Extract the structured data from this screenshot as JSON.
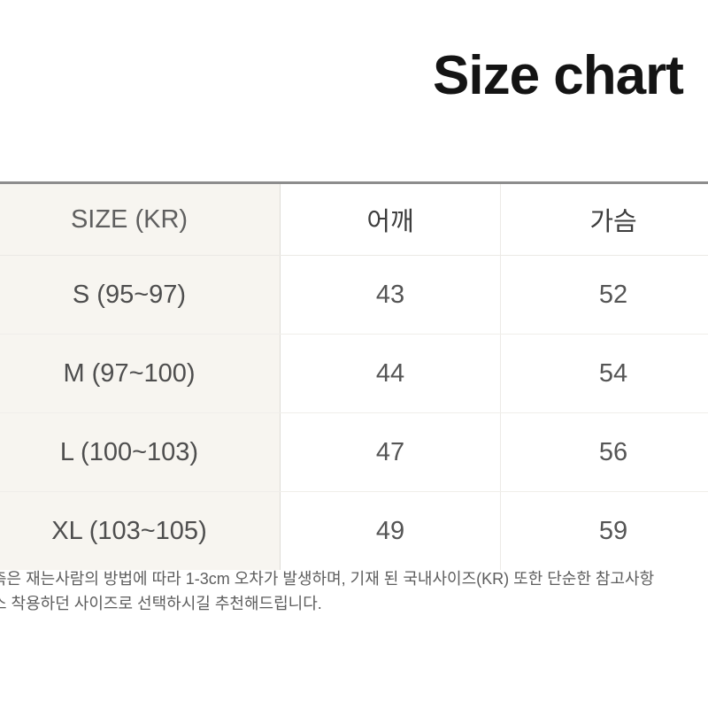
{
  "title": "Size chart",
  "table": {
    "columns": [
      {
        "label": "SIZE (KR)"
      },
      {
        "label": "어깨"
      },
      {
        "label": "가슴"
      }
    ],
    "rows": [
      {
        "label": "S (95~97)",
        "shoulder": "43",
        "chest": "52"
      },
      {
        "label": "M (97~100)",
        "shoulder": "44",
        "chest": "54"
      },
      {
        "label": "L (100~103)",
        "shoulder": "47",
        "chest": "56"
      },
      {
        "label": "XL (103~105)",
        "shoulder": "49",
        "chest": "59"
      }
    ]
  },
  "footnote": {
    "line1": "측은 재는사람의 방법에 따라 1-3cm 오차가 발생하며, 기재 된 국내사이즈(KR) 또한 단순한 참고사항",
    "line2": "소 착용하던 사이즈로 선택하시길 추천해드립니다."
  },
  "colors": {
    "table_top_border": "#8d8d8d",
    "label_column_bg": "#f7f5f0",
    "column_divider": "#dedcd7",
    "title_text": "#141414",
    "header_text": "#3d3d3d",
    "cell_text": "#555555",
    "footnote_text": "#5d5d5d",
    "page_bg": "#ffffff"
  }
}
